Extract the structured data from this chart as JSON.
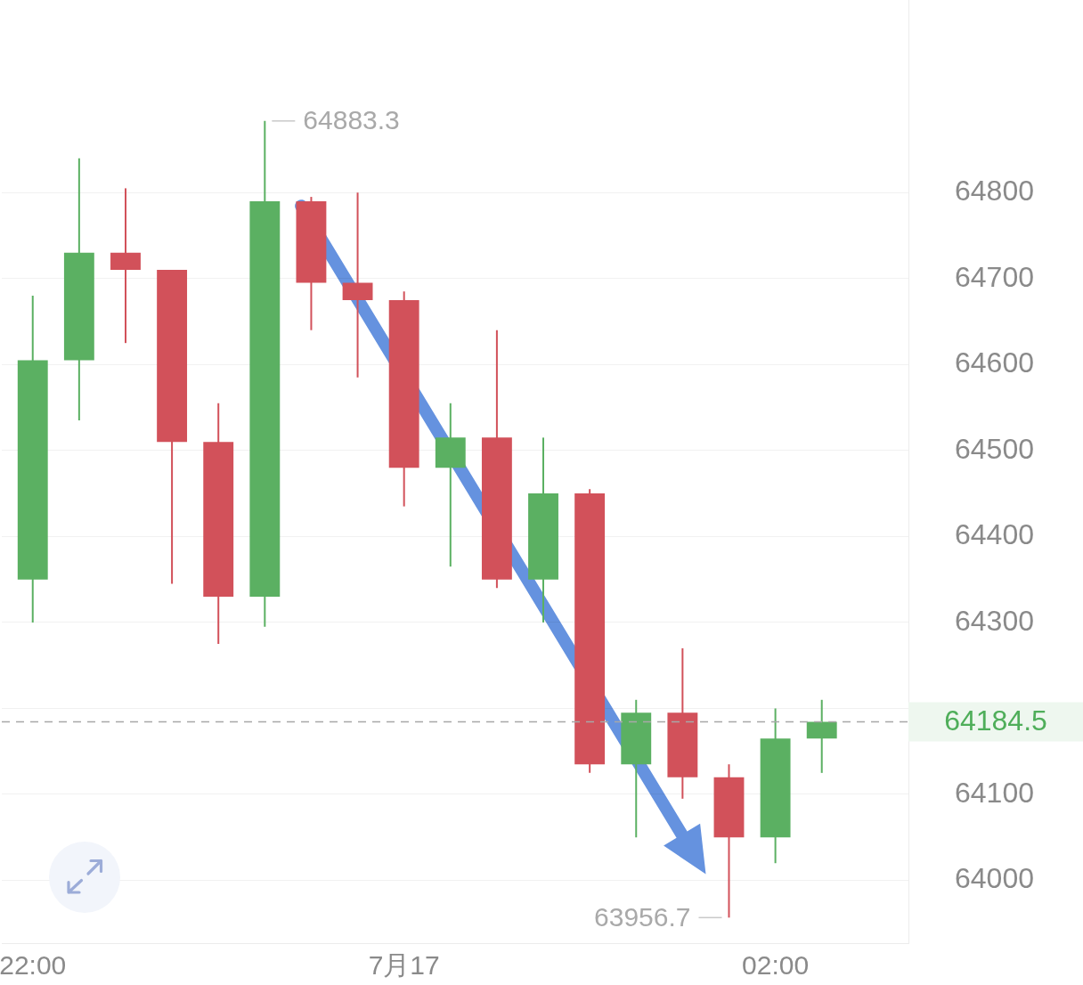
{
  "chart_data": {
    "type": "candlestick",
    "x": [
      "--07-16T22:00",
      "--07-16T22:15",
      "--07-16T22:30",
      "--07-16T22:45",
      "--07-16T23:00",
      "--07-16T23:15",
      "--07-16T23:30",
      "--07-16T23:45",
      "--07-17T00:00",
      "--07-17T00:15",
      "--07-17T00:30",
      "--07-17T00:45",
      "--07-17T01:00",
      "--07-17T01:15",
      "--07-17T01:30",
      "--07-17T01:45",
      "--07-17T02:00",
      "--07-17T02:15"
    ],
    "ohlc": [
      [
        64350,
        64680,
        64300,
        64605
      ],
      [
        64605,
        64840,
        64535,
        64730
      ],
      [
        64730,
        64805,
        64625,
        64710
      ],
      [
        64710,
        64710,
        64345,
        64510
      ],
      [
        64510,
        64555,
        64275,
        64330
      ],
      [
        64330,
        64883.3,
        64295,
        64790
      ],
      [
        64790,
        64795,
        64640,
        64695
      ],
      [
        64695,
        64800,
        64585,
        64675
      ],
      [
        64675,
        64685,
        64435,
        64480
      ],
      [
        64480,
        64555,
        64365,
        64515
      ],
      [
        64515,
        64640,
        64340,
        64350
      ],
      [
        64350,
        64515,
        64300,
        64450
      ],
      [
        64450,
        64455,
        64125,
        64135
      ],
      [
        64135,
        64210,
        64050,
        64195
      ],
      [
        64195,
        64270,
        64095,
        64120
      ],
      [
        64120,
        64135,
        63956.7,
        64050
      ],
      [
        64050,
        64200,
        64020,
        64165
      ],
      [
        64165,
        64210,
        64125,
        64184.5
      ]
    ],
    "colors": [
      "#5bb062",
      "#5bb062",
      "#d2515a",
      "#d2515a",
      "#d2515a",
      "#5bb062",
      "#d2515a",
      "#d2515a",
      "#d2515a",
      "#5bb062",
      "#d2515a",
      "#5bb062",
      "#d2515a",
      "#5bb062",
      "#d2515a",
      "#d2515a",
      "#5bb062",
      "#5bb062"
    ],
    "xlim": [
      "--07-16T21:50",
      "--07-17T02:43"
    ],
    "xticks": [
      {
        "value": "--07-16T22:00",
        "label": "22:00"
      },
      {
        "value": "--07-17T00:00",
        "label": "7月17"
      },
      {
        "value": "--07-17T02:00",
        "label": "02:00"
      }
    ],
    "ylim": [
      63927,
      65024
    ],
    "yticks": [
      64000,
      64100,
      {
        "value": 64200,
        "label": null
      },
      64300,
      64400,
      64500,
      64600,
      64700,
      64800
    ],
    "grid": "y",
    "ref_lines": [
      {
        "axis": "y",
        "value": 64184.5,
        "label": "64184.5",
        "color": "#a8a8a8",
        "line_style": "dashed"
      }
    ],
    "annotations": [
      "64883.3",
      "63956.7"
    ]
  }
}
